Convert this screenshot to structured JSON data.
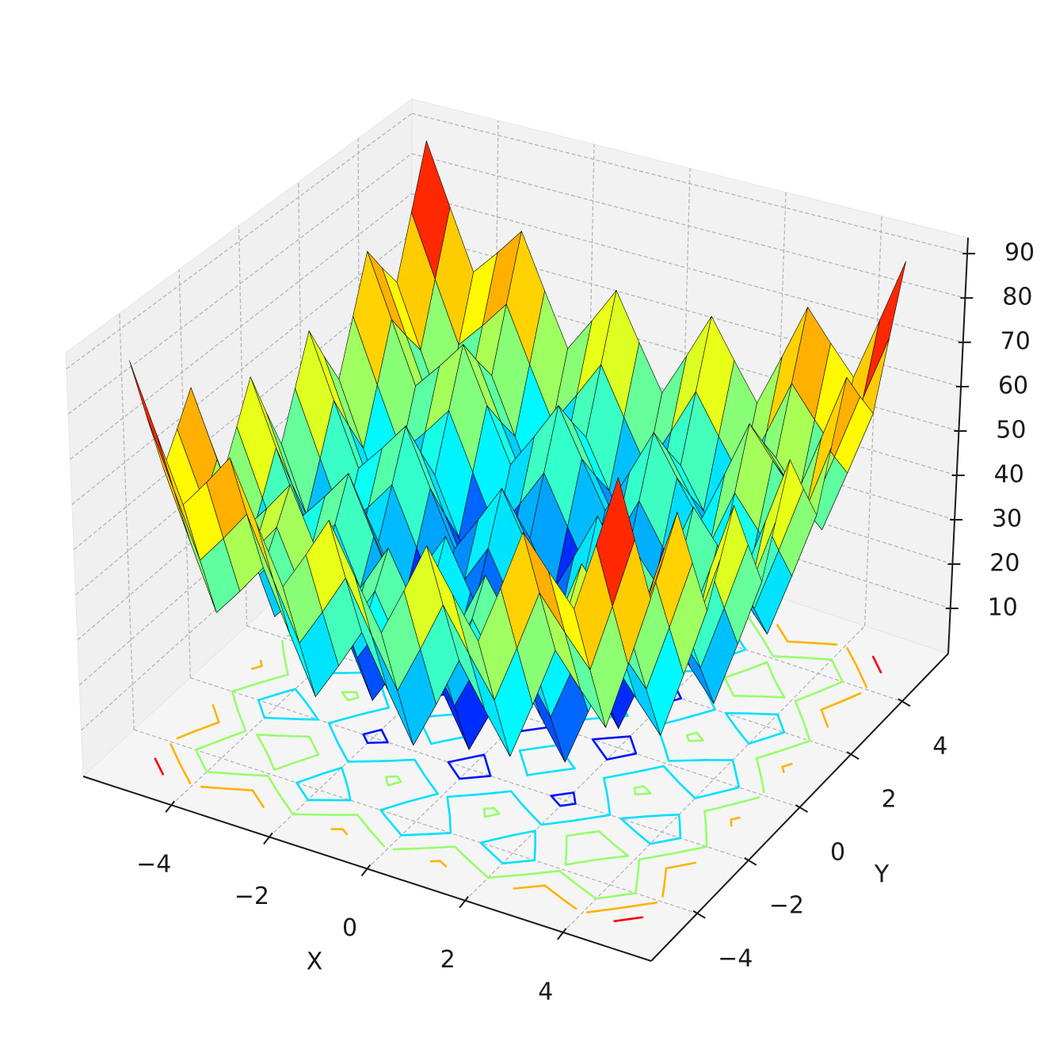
{
  "chart_data": {
    "type": "surface",
    "xlabel": "X",
    "ylabel": "Y",
    "x": [
      -5,
      -4.5,
      -4,
      -3.5,
      -3,
      -2.5,
      -2,
      -1.5,
      -1,
      -0.5,
      0,
      0.5,
      1,
      1.5,
      2,
      2.5,
      3,
      3.5,
      4,
      4.5,
      5
    ],
    "y": [
      -5,
      -4.5,
      -4,
      -3.5,
      -3,
      -2.5,
      -2,
      -1.5,
      -1,
      -0.5,
      0,
      0.5,
      1,
      1.5,
      2,
      2.5,
      3,
      3.5,
      4,
      4.5,
      5
    ],
    "z": [
      [
        90,
        75.25,
        61,
        67.25,
        74,
        61.25,
        49,
        57.25,
        66,
        55.25,
        45,
        55.25,
        66,
        57.25,
        49,
        61.25,
        74,
        67.25,
        61,
        75.25,
        90
      ],
      [
        75.25,
        60.5,
        46.25,
        52.5,
        59.25,
        46.5,
        34.25,
        42.5,
        51.25,
        40.5,
        30.25,
        40.5,
        51.25,
        42.5,
        34.25,
        46.5,
        59.25,
        52.5,
        46.25,
        60.5,
        75.25
      ],
      [
        61,
        46.25,
        32,
        38.25,
        45,
        32.25,
        20,
        28.25,
        37,
        26.25,
        16,
        26.25,
        37,
        28.25,
        20,
        32.25,
        45,
        38.25,
        32,
        46.25,
        61
      ],
      [
        67.25,
        52.5,
        38.25,
        44.5,
        51.25,
        38.5,
        26.25,
        34.5,
        43.25,
        32.5,
        22.25,
        32.5,
        43.25,
        34.5,
        26.25,
        38.5,
        51.25,
        44.5,
        38.25,
        52.5,
        67.25
      ],
      [
        74,
        59.25,
        45,
        51.25,
        58,
        45.25,
        33,
        41.25,
        50,
        39.25,
        29,
        39.25,
        50,
        41.25,
        33,
        45.25,
        58,
        51.25,
        45,
        59.25,
        74
      ],
      [
        61.25,
        46.5,
        32.25,
        38.5,
        45.25,
        32.5,
        20.25,
        28.5,
        37.25,
        26.5,
        16.25,
        26.5,
        37.25,
        28.5,
        20.25,
        32.5,
        45.25,
        38.5,
        32.25,
        46.5,
        61.25
      ],
      [
        49,
        34.25,
        20,
        26.25,
        33,
        20.25,
        8,
        16.25,
        25,
        14.25,
        4,
        14.25,
        25,
        16.25,
        8,
        20.25,
        33,
        26.25,
        20,
        34.25,
        49
      ],
      [
        57.25,
        42.5,
        28.25,
        34.5,
        41.25,
        28.5,
        16.25,
        24.5,
        33.25,
        22.5,
        12.25,
        22.5,
        33.25,
        24.5,
        16.25,
        28.5,
        41.25,
        34.5,
        28.25,
        42.5,
        57.25
      ],
      [
        66,
        51.25,
        37,
        43.25,
        50,
        37.25,
        25,
        33.25,
        42,
        31.25,
        21,
        31.25,
        42,
        33.25,
        25,
        37.25,
        50,
        43.25,
        37,
        51.25,
        66
      ],
      [
        55.25,
        40.5,
        26.25,
        32.5,
        39.25,
        26.5,
        14.25,
        22.5,
        31.25,
        20.5,
        10.25,
        20.5,
        31.25,
        22.5,
        14.25,
        26.5,
        39.25,
        32.5,
        26.25,
        40.5,
        55.25
      ],
      [
        45,
        30.25,
        16,
        22.25,
        29,
        16.25,
        4,
        12.25,
        21,
        10.25,
        0,
        10.25,
        21,
        12.25,
        4,
        16.25,
        29,
        22.25,
        16,
        30.25,
        45
      ],
      [
        55.25,
        40.5,
        26.25,
        32.5,
        39.25,
        26.5,
        14.25,
        22.5,
        31.25,
        20.5,
        10.25,
        20.5,
        31.25,
        22.5,
        14.25,
        26.5,
        39.25,
        32.5,
        26.25,
        40.5,
        55.25
      ],
      [
        66,
        51.25,
        37,
        43.25,
        50,
        37.25,
        25,
        33.25,
        42,
        31.25,
        21,
        31.25,
        42,
        33.25,
        25,
        37.25,
        50,
        43.25,
        37,
        51.25,
        66
      ],
      [
        57.25,
        42.5,
        28.25,
        34.5,
        41.25,
        28.5,
        16.25,
        24.5,
        33.25,
        22.5,
        12.25,
        22.5,
        33.25,
        24.5,
        16.25,
        28.5,
        41.25,
        34.5,
        28.25,
        42.5,
        57.25
      ],
      [
        49,
        34.25,
        20,
        26.25,
        33,
        20.25,
        8,
        16.25,
        25,
        14.25,
        4,
        14.25,
        25,
        16.25,
        8,
        20.25,
        33,
        26.25,
        20,
        34.25,
        49
      ],
      [
        61.25,
        46.5,
        32.25,
        38.5,
        45.25,
        32.5,
        20.25,
        28.5,
        37.25,
        26.5,
        16.25,
        26.5,
        37.25,
        28.5,
        20.25,
        32.5,
        45.25,
        38.5,
        32.25,
        46.5,
        61.25
      ],
      [
        74,
        59.25,
        45,
        51.25,
        58,
        45.25,
        33,
        41.25,
        50,
        39.25,
        29,
        39.25,
        50,
        41.25,
        33,
        45.25,
        58,
        51.25,
        45,
        59.25,
        74
      ],
      [
        67.25,
        52.5,
        38.25,
        44.5,
        51.25,
        38.5,
        26.25,
        34.5,
        43.25,
        32.5,
        22.25,
        32.5,
        43.25,
        34.5,
        26.25,
        38.5,
        51.25,
        44.5,
        38.25,
        52.5,
        67.25
      ],
      [
        61,
        46.25,
        32,
        38.25,
        45,
        32.25,
        20,
        28.25,
        37,
        26.25,
        16,
        26.25,
        37,
        28.25,
        20,
        32.25,
        45,
        38.25,
        32,
        46.25,
        61
      ],
      [
        75.25,
        60.5,
        46.25,
        52.5,
        59.25,
        46.5,
        34.25,
        42.5,
        51.25,
        40.5,
        30.25,
        40.5,
        51.25,
        42.5,
        34.25,
        46.5,
        59.25,
        52.5,
        46.25,
        60.5,
        75.25
      ],
      [
        90,
        75.25,
        61,
        67.25,
        74,
        61.25,
        49,
        57.25,
        66,
        55.25,
        45,
        55.25,
        66,
        57.25,
        49,
        61.25,
        74,
        67.25,
        61,
        75.25,
        90
      ]
    ],
    "xlim": [
      -5.8,
      5.8
    ],
    "ylim": [
      -5.8,
      5.8
    ],
    "zlim": [
      -0.2,
      93.6
    ],
    "xticks": [
      {
        "value": -4,
        "label": "−4"
      },
      {
        "value": -2,
        "label": "−2"
      },
      0,
      2,
      4
    ],
    "yticks": [
      {
        "value": -4,
        "label": "−4"
      },
      {
        "value": -2,
        "label": "−2"
      },
      0,
      2,
      4
    ],
    "zticks": [
      10,
      20,
      30,
      40,
      50,
      60,
      70,
      80,
      90
    ],
    "colormap": "jet",
    "edgecolor": "#000000",
    "contour_levels": [
      13,
      31,
      47,
      63,
      79
    ],
    "grid": true
  }
}
